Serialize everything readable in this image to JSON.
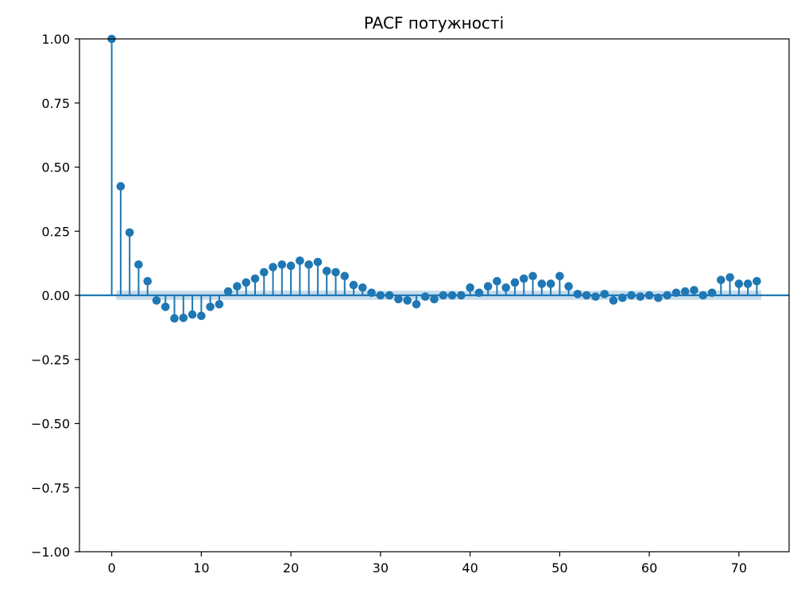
{
  "chart_data": {
    "type": "stem",
    "title": "PACF потужності",
    "xlabel": "",
    "ylabel": "",
    "xlim": [
      -3.6,
      75.6
    ],
    "ylim": [
      -1.0,
      1.0
    ],
    "x_ticks": [
      0,
      10,
      20,
      30,
      40,
      50,
      60,
      70
    ],
    "x_tick_labels": [
      "0",
      "10",
      "20",
      "30",
      "40",
      "50",
      "60",
      "70"
    ],
    "y_ticks": [
      -1.0,
      -0.75,
      -0.5,
      -0.25,
      0.0,
      0.25,
      0.5,
      0.75,
      1.0
    ],
    "y_tick_labels": [
      "−1.00",
      "−0.75",
      "−0.50",
      "−0.25",
      "0.00",
      "0.25",
      "0.50",
      "0.75",
      "1.00"
    ],
    "confidence_band": 0.018,
    "grid": false,
    "colors": {
      "marker": "#1f77b4",
      "band": "#1f77b4"
    },
    "lags": [
      0,
      1,
      2,
      3,
      4,
      5,
      6,
      7,
      8,
      9,
      10,
      11,
      12,
      13,
      14,
      15,
      16,
      17,
      18,
      19,
      20,
      21,
      22,
      23,
      24,
      25,
      26,
      27,
      28,
      29,
      30,
      31,
      32,
      33,
      34,
      35,
      36,
      37,
      38,
      39,
      40,
      41,
      42,
      43,
      44,
      45,
      46,
      47,
      48,
      49,
      50,
      51,
      52,
      53,
      54,
      55,
      56,
      57,
      58,
      59,
      60,
      61,
      62,
      63,
      64,
      65,
      66,
      67,
      68,
      69,
      70,
      71,
      72
    ],
    "values": [
      1.0,
      0.425,
      0.245,
      0.12,
      0.055,
      -0.02,
      -0.045,
      -0.09,
      -0.088,
      -0.075,
      -0.08,
      -0.045,
      -0.035,
      0.015,
      0.035,
      0.05,
      0.065,
      0.09,
      0.11,
      0.12,
      0.115,
      0.135,
      0.12,
      0.13,
      0.095,
      0.09,
      0.075,
      0.04,
      0.03,
      0.01,
      0.0,
      0.0,
      -0.015,
      -0.02,
      -0.035,
      -0.005,
      -0.015,
      0.0,
      0.0,
      0.0,
      0.03,
      0.01,
      0.035,
      0.055,
      0.03,
      0.05,
      0.065,
      0.075,
      0.045,
      0.045,
      0.075,
      0.035,
      0.005,
      0.0,
      -0.005,
      0.005,
      -0.02,
      -0.01,
      0.0,
      -0.005,
      0.0,
      -0.01,
      0.0,
      0.01,
      0.015,
      0.02,
      0.0,
      0.01,
      0.06,
      0.07,
      0.045,
      0.045,
      0.055
    ]
  }
}
